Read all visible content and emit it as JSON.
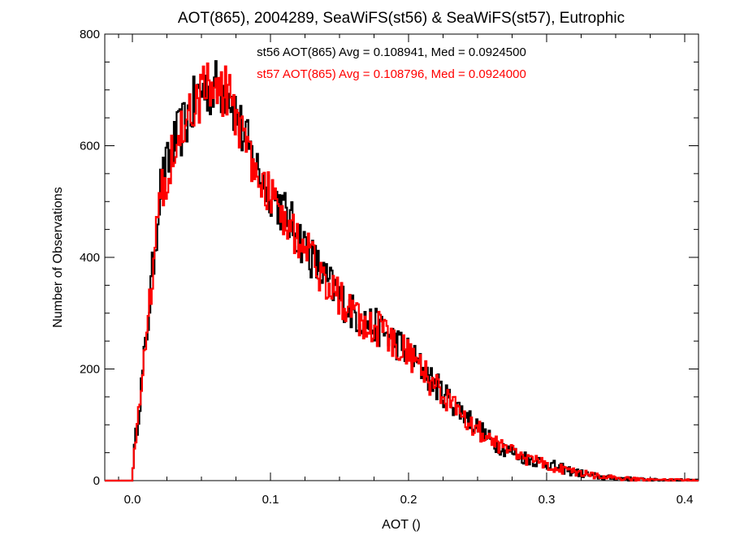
{
  "chart_data": {
    "type": "line",
    "style": "histogram-step",
    "title": "AOT(865), 2004289, SeaWiFS(st56) & SeaWiFS(st57), Eutrophic",
    "xlabel": "AOT ()",
    "ylabel": "Number of Observations",
    "xlim": [
      -0.02,
      0.41
    ],
    "ylim": [
      0,
      800
    ],
    "x_ticks": [
      "0.0",
      "0.1",
      "0.2",
      "0.3",
      "0.4"
    ],
    "y_ticks": [
      "0",
      "200",
      "400",
      "600",
      "800"
    ],
    "grid": false,
    "legend": "none",
    "annotations": [
      {
        "text": "st56 AOT(865) Avg = 0.108941, Med = 0.0924500",
        "color": "#000000"
      },
      {
        "text": "st57 AOT(865) Avg = 0.108796, Med = 0.0924000",
        "color": "#ff0000"
      }
    ],
    "x": [
      0.0,
      0.01,
      0.02,
      0.03,
      0.04,
      0.05,
      0.06,
      0.07,
      0.08,
      0.09,
      0.1,
      0.12,
      0.14,
      0.16,
      0.18,
      0.2,
      0.22,
      0.24,
      0.26,
      0.28,
      0.3,
      0.32,
      0.34,
      0.36,
      0.38,
      0.4,
      0.41
    ],
    "series": [
      {
        "name": "st56",
        "color": "#000000",
        "values": [
          20,
          250,
          520,
          600,
          650,
          700,
          705,
          700,
          620,
          560,
          520,
          440,
          360,
          300,
          270,
          230,
          170,
          120,
          70,
          45,
          30,
          15,
          6,
          3,
          1,
          1,
          0
        ]
      },
      {
        "name": "st57",
        "color": "#ff0000",
        "values": [
          20,
          250,
          515,
          595,
          645,
          695,
          700,
          700,
          610,
          555,
          515,
          435,
          355,
          298,
          268,
          228,
          165,
          118,
          68,
          44,
          29,
          15,
          6,
          3,
          1,
          1,
          0
        ]
      }
    ]
  }
}
